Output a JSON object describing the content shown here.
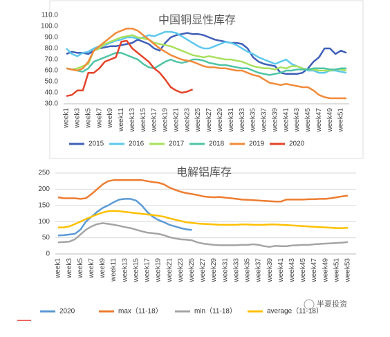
{
  "chart_data": [
    {
      "type": "line",
      "title": "中国铜显性库存",
      "categories": [
        "week1",
        null,
        "week3",
        null,
        "week5",
        null,
        "week7",
        null,
        "week9",
        null,
        "week11",
        null,
        "week13",
        null,
        "week15",
        null,
        "week17",
        null,
        "week19",
        null,
        "week21",
        null,
        "week23",
        null,
        "week25",
        null,
        "week27",
        null,
        "week29",
        null,
        "week31",
        null,
        "week33",
        null,
        "week35",
        null,
        "week37",
        null,
        "week39",
        null,
        "week41",
        null,
        "week43",
        null,
        "week45",
        null,
        "week47",
        null,
        "week49",
        null,
        "week51",
        null
      ],
      "series": [
        {
          "name": "2015",
          "color": "#3f5fb8",
          "values": [
            75,
            77,
            76,
            76,
            75,
            78,
            80,
            81,
            82,
            82,
            83,
            84,
            85,
            88,
            86,
            84,
            80,
            78,
            85,
            90,
            92,
            93,
            94,
            93,
            93,
            92,
            90,
            88,
            87,
            86,
            85,
            85,
            84,
            80,
            72,
            68,
            66,
            65,
            64,
            58,
            57,
            57,
            57,
            58,
            62,
            68,
            72,
            80,
            80,
            75,
            78,
            76
          ]
        },
        {
          "name": "2016",
          "color": "#5ec8ee",
          "values": [
            80,
            75,
            73,
            76,
            77,
            80,
            82,
            83,
            85,
            87,
            88,
            90,
            90,
            89,
            90,
            92,
            91,
            93,
            95,
            95,
            94,
            91,
            88,
            85,
            82,
            80,
            80,
            82,
            84,
            86,
            85,
            83,
            80,
            77,
            75,
            72,
            70,
            68,
            66,
            68,
            70,
            66,
            64,
            62,
            60,
            60,
            58,
            58,
            60,
            60,
            59,
            58
          ]
        },
        {
          "name": "2017",
          "color": "#a8e05c",
          "values": [
            62,
            61,
            62,
            64,
            66,
            78,
            80,
            84,
            86,
            88,
            90,
            91,
            92,
            90,
            89,
            88,
            85,
            84,
            83,
            82,
            80,
            78,
            76,
            74,
            73,
            72,
            73,
            72,
            71,
            70,
            70,
            69,
            68,
            66,
            64,
            63,
            62,
            62,
            61,
            63,
            62,
            64,
            64,
            62,
            61,
            61,
            60,
            60,
            60,
            61,
            61,
            60
          ]
        },
        {
          "name": "2018",
          "color": "#4fc4a6",
          "values": [
            62,
            61,
            60,
            59,
            62,
            68,
            70,
            72,
            74,
            76,
            76,
            74,
            72,
            70,
            66,
            63,
            62,
            65,
            68,
            70,
            68,
            67,
            68,
            70,
            70,
            69,
            67,
            66,
            65,
            65,
            64,
            63,
            62,
            62,
            60,
            58,
            57,
            56,
            57,
            58,
            60,
            60,
            61,
            61,
            61,
            62,
            62,
            62,
            61,
            61,
            62,
            62
          ]
        },
        {
          "name": "2019",
          "color": "#f28a3a",
          "values": [
            62,
            61,
            60,
            62,
            68,
            78,
            82,
            86,
            90,
            94,
            96,
            98,
            98,
            96,
            92,
            88,
            84,
            80,
            77,
            74,
            72,
            70,
            69,
            68,
            66,
            64,
            63,
            63,
            62,
            62,
            61,
            60,
            60,
            58,
            56,
            55,
            52,
            49,
            48,
            47,
            48,
            47,
            46,
            45,
            45,
            42,
            38,
            36,
            35,
            35,
            35,
            35
          ]
        },
        {
          "name": "2020",
          "color": "#e5432a",
          "values": [
            37,
            38,
            42,
            42,
            58,
            58,
            62,
            68,
            70,
            72,
            86,
            87,
            80,
            76,
            72,
            68,
            62,
            58,
            52,
            45,
            42,
            40,
            41,
            43,
            null,
            null,
            null,
            null,
            null,
            null,
            null,
            null,
            null,
            null,
            null,
            null,
            null,
            null,
            null,
            null,
            null,
            null,
            null,
            null,
            null,
            null,
            null,
            null,
            null,
            null,
            null,
            null
          ]
        }
      ],
      "ylim": [
        30,
        110
      ],
      "yticks": [
        {
          "value": 30,
          "label": "30.0"
        },
        {
          "value": 40,
          "label": "40.0"
        },
        {
          "value": 50,
          "label": "50.0"
        },
        {
          "value": 60,
          "label": "60.0"
        },
        {
          "value": 70,
          "label": "70.0"
        },
        {
          "value": 80,
          "label": "80.0"
        },
        {
          "value": 90,
          "label": "90.0"
        },
        {
          "value": 100,
          "label": "100.0"
        },
        {
          "value": 110,
          "label": "110.0"
        }
      ],
      "grid": false,
      "legend": "bottom"
    },
    {
      "type": "line",
      "title": "电解铝库存",
      "categories": [
        "week1",
        null,
        "week3",
        null,
        "week5",
        null,
        "week7",
        null,
        "week9",
        null,
        "week11",
        null,
        "week13",
        null,
        "week15",
        null,
        "week17",
        null,
        "week19",
        null,
        "week21",
        null,
        "week23",
        null,
        "week25",
        null,
        "week27",
        null,
        "week29",
        null,
        "week31",
        null,
        "week33",
        null,
        "week35",
        null,
        "week37",
        null,
        "week39",
        null,
        "week41",
        null,
        "week43",
        null,
        "week45",
        null,
        "week47",
        null,
        "week49",
        null,
        "week51",
        null,
        "week53",
        null
      ],
      "series": [
        {
          "name": "2020",
          "color": "#5b9bd5",
          "values": [
            57,
            58,
            60,
            62,
            75,
            100,
            115,
            130,
            142,
            150,
            160,
            168,
            170,
            170,
            165,
            150,
            130,
            115,
            105,
            98,
            90,
            85,
            80,
            76,
            74,
            null,
            null,
            null,
            null,
            null,
            null,
            null,
            null,
            null,
            null,
            null,
            null,
            null,
            null,
            null,
            null,
            null,
            null,
            null,
            null,
            null,
            null,
            null,
            null,
            null,
            null,
            null,
            null,
            null
          ]
        },
        {
          "name": "max（11-18）",
          "color": "#ed7d31",
          "values": [
            175,
            172,
            172,
            172,
            170,
            172,
            185,
            200,
            215,
            225,
            228,
            228,
            228,
            228,
            228,
            228,
            225,
            222,
            220,
            215,
            205,
            198,
            192,
            188,
            185,
            182,
            178,
            176,
            175,
            176,
            174,
            172,
            170,
            168,
            167,
            166,
            165,
            164,
            163,
            162,
            162,
            168,
            168,
            168,
            168,
            169,
            169,
            170,
            170,
            172,
            175,
            178,
            180,
            null
          ]
        },
        {
          "name": "min（11-18）",
          "color": "#a5a5a5",
          "values": [
            36,
            37,
            38,
            45,
            60,
            75,
            85,
            92,
            95,
            93,
            90,
            87,
            83,
            80,
            75,
            70,
            66,
            64,
            62,
            58,
            52,
            48,
            45,
            44,
            42,
            36,
            32,
            30,
            28,
            27,
            27,
            27,
            27,
            28,
            28,
            30,
            28,
            24,
            22,
            25,
            24,
            24,
            26,
            27,
            28,
            28,
            30,
            31,
            32,
            33,
            34,
            35,
            37,
            null
          ]
        },
        {
          "name": "average（11-18）",
          "color": "#ffc000",
          "values": [
            82,
            82,
            85,
            92,
            100,
            108,
            115,
            122,
            128,
            132,
            133,
            132,
            130,
            128,
            126,
            124,
            122,
            120,
            118,
            115,
            110,
            106,
            102,
            98,
            96,
            94,
            93,
            92,
            91,
            90,
            90,
            90,
            90,
            91,
            91,
            90,
            90,
            90,
            91,
            91,
            90,
            89,
            88,
            87,
            86,
            85,
            84,
            83,
            82,
            81,
            80,
            80,
            81,
            null
          ]
        }
      ],
      "ylim": [
        0,
        250
      ],
      "yticks": [
        0,
        50,
        100,
        150,
        200,
        250
      ],
      "grid": true,
      "legend": "bottom",
      "annotation": "半夏投资"
    }
  ]
}
